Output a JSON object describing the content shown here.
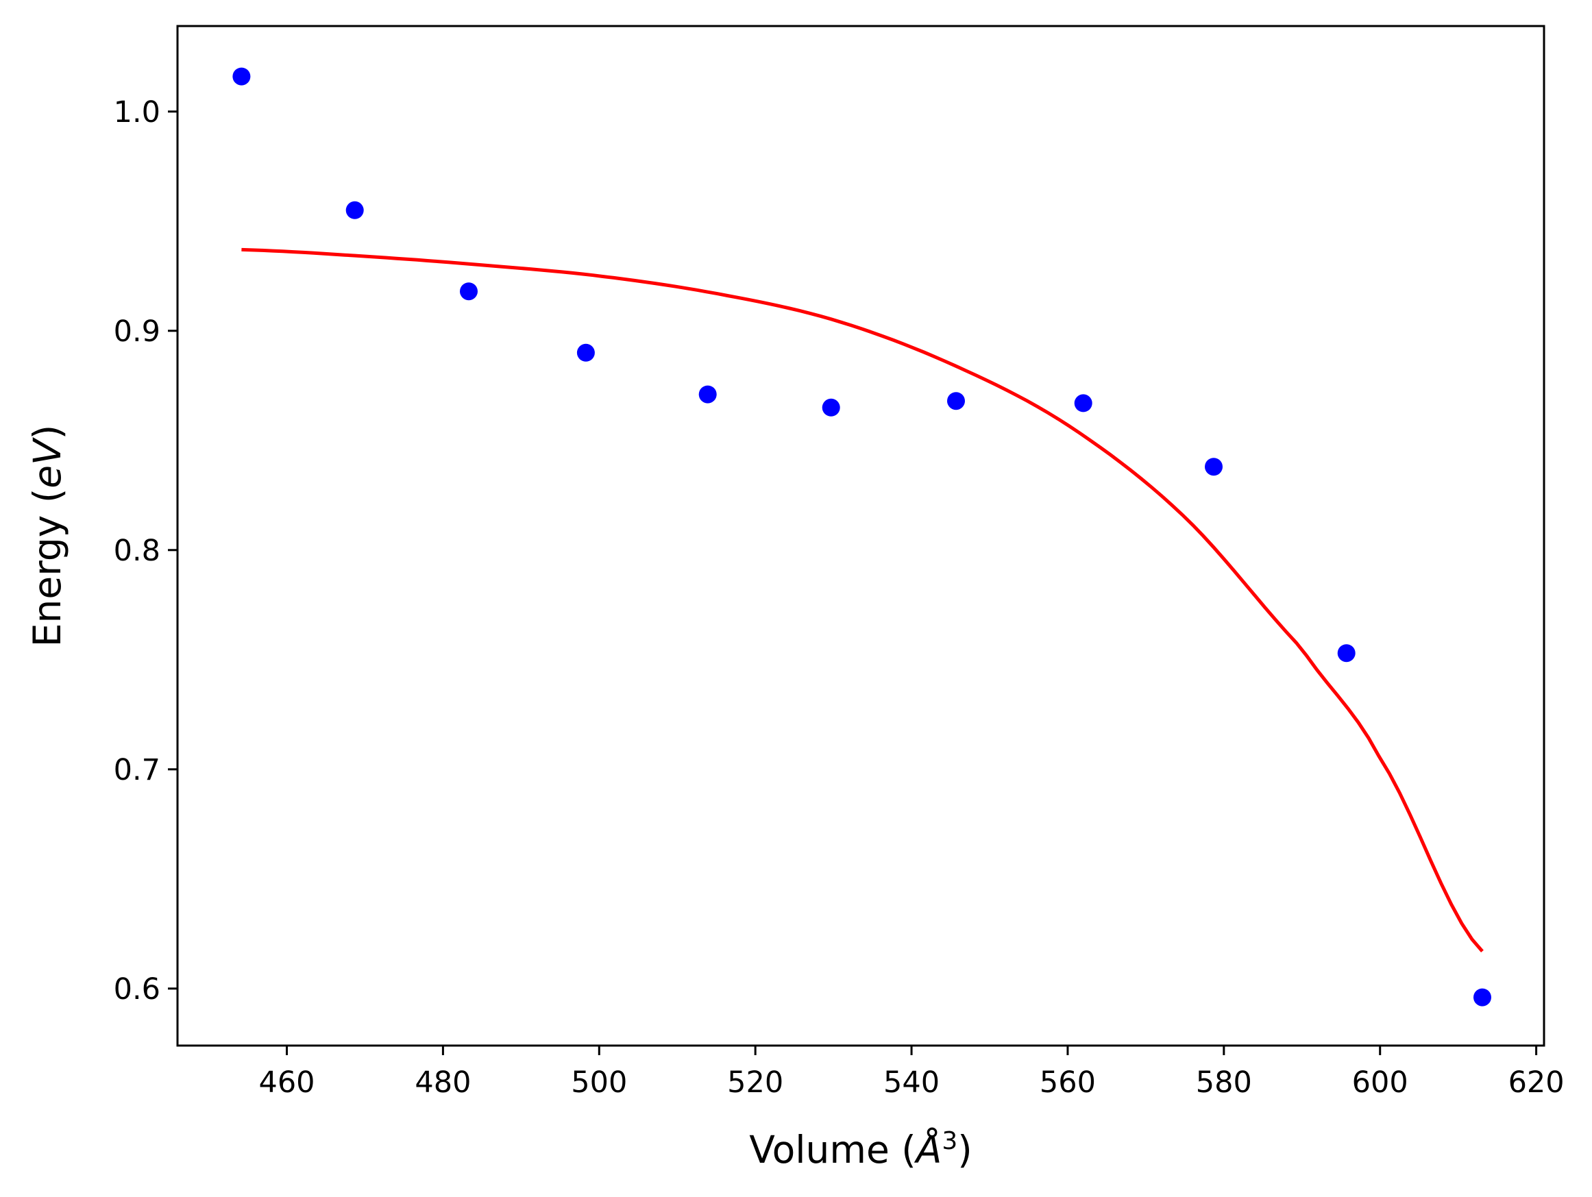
{
  "chart_data": {
    "type": "scatter",
    "xlabel": "Volume (Å³)",
    "ylabel": "Energy (eV)",
    "xlabel_parts": {
      "pre": "Volume (",
      "italic": "Å",
      "sup": "3",
      "post": ")"
    },
    "ylabel_parts": {
      "pre": "Energy (",
      "italic": "eV",
      "post": ")"
    },
    "xlim": [
      446,
      621
    ],
    "ylim": [
      0.574,
      1.039
    ],
    "x_ticks": [
      460,
      480,
      500,
      520,
      540,
      560,
      580,
      600,
      620
    ],
    "x_tick_labels": [
      "460",
      "480",
      "500",
      "520",
      "540",
      "560",
      "580",
      "600",
      "620"
    ],
    "y_ticks": [
      0.6,
      0.7,
      0.8,
      0.9,
      1.0
    ],
    "y_tick_labels": [
      "0.6",
      "0.7",
      "0.8",
      "0.9",
      "1.0"
    ],
    "grid": false,
    "series": [
      {
        "kind": "scatter",
        "color": "#0000ff",
        "x": [
          454.2,
          468.7,
          483.3,
          498.3,
          513.9,
          529.7,
          545.7,
          562.0,
          578.7,
          595.7,
          613.1
        ],
        "y": [
          1.016,
          0.955,
          0.918,
          0.89,
          0.871,
          0.865,
          0.868,
          0.867,
          0.838,
          0.753,
          0.596
        ]
      },
      {
        "kind": "line",
        "color": "#ff0000",
        "x": [
          454.2,
          470,
          485,
          500,
          515,
          530,
          545,
          560,
          575,
          590,
          600,
          613.1
        ],
        "y": [
          0.937,
          0.934,
          0.93,
          0.925,
          0.917,
          0.905,
          0.885,
          0.857,
          0.815,
          0.755,
          0.705,
          0.617
        ]
      }
    ]
  }
}
